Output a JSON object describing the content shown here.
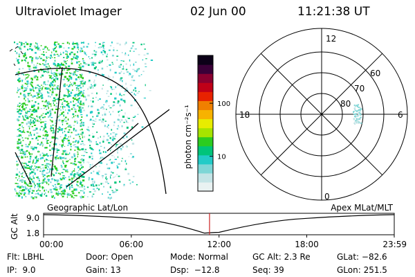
{
  "header": {
    "title": "Ultraviolet Imager",
    "date": "02 Jun 00",
    "time": "11:21:38 UT"
  },
  "colorbar": {
    "unit_label": "photon cm⁻²s⁻¹",
    "ticks": [
      "100",
      "10"
    ],
    "tick_values": [
      100,
      10
    ],
    "range": [
      2.2,
      800
    ],
    "scale": "log",
    "colors": [
      "#e9f2f2",
      "#c4e4e6",
      "#7ed6d6",
      "#22cbc7",
      "#00c47a",
      "#2ccc20",
      "#a6e400",
      "#e8ec00",
      "#f7b200",
      "#f08000",
      "#e82200",
      "#c00018",
      "#8a0030",
      "#3a0038",
      "#0c0018"
    ]
  },
  "polar": {
    "tick_labels": {
      "top": "12",
      "bottom": "0",
      "left": "18",
      "right": "6"
    },
    "lat_labels": [
      "60",
      "70",
      "80"
    ]
  },
  "timeline": {
    "ylabel": "GC Alt",
    "ytick_top": "9.0",
    "ytick_bottom": "1.8",
    "left_label": "Geographic Lat/Lon",
    "right_label": "Apex MLat/MLT",
    "xticks": [
      "00:00",
      "06:00",
      "12:00",
      "18:00",
      "23:59"
    ],
    "current_marker_time": "11:21",
    "marker_color": "#cc2222"
  },
  "chart_data": {
    "type": "line",
    "title": "",
    "xlabel": "",
    "ylabel": "GC Alt",
    "x": [
      "00:00",
      "06:00",
      "11:00",
      "12:00",
      "18:00",
      "23:59"
    ],
    "series": [
      {
        "values": [
          9.0,
          7.7,
          1.9,
          2.2,
          7.6,
          9.0
        ]
      }
    ],
    "ylim": [
      1.8,
      9.0
    ]
  },
  "info": {
    "rows": [
      [
        "Flt: LBHL",
        "Door: Open",
        "Mode: Normal",
        "GC Alt: 2.3 Re",
        "GLat: −82.6"
      ],
      [
        "IP:  9.0",
        "Gain: 13",
        "Dsp:  −12.8",
        "Seq: 39",
        "GLon: 251.5"
      ]
    ]
  }
}
